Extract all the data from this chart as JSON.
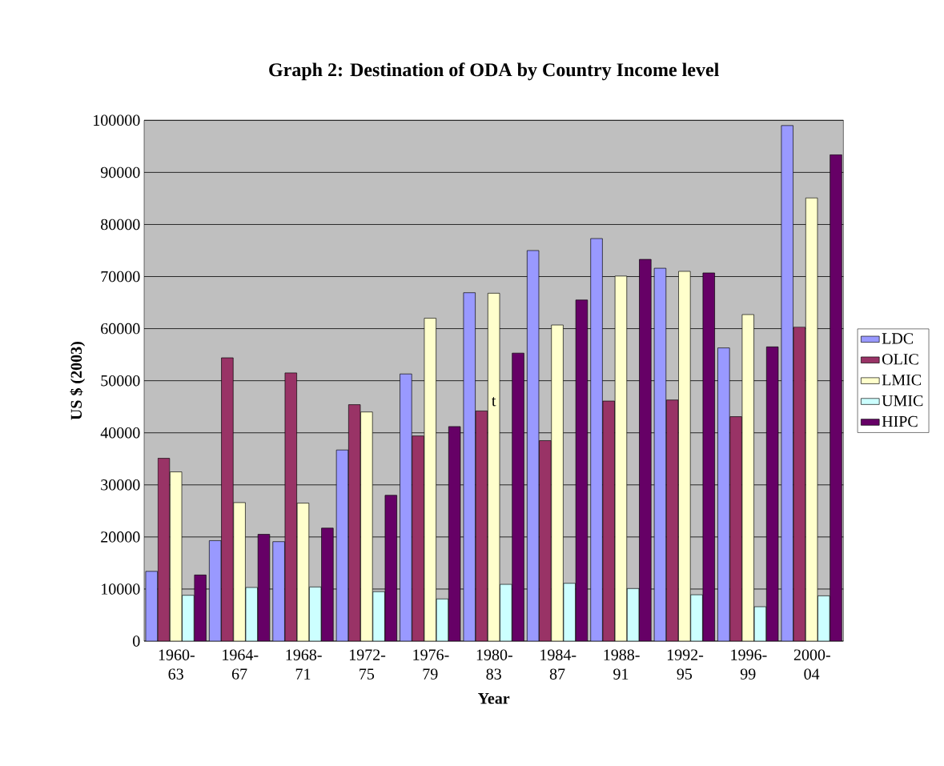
{
  "chart_data": {
    "type": "bar",
    "title": "Graph 2: Destination of ODA by Country Income level",
    "xlabel": "Year",
    "ylabel": "US $ (2003)",
    "categories": [
      "1960-63",
      "1964-67",
      "1968-71",
      "1972-75",
      "1976-79",
      "1980-83",
      "1984-87",
      "1988-91",
      "1992-95",
      "1996-99",
      "2000-04"
    ],
    "series": [
      {
        "name": "LDC",
        "color": "#9999ff",
        "values": [
          13400,
          19300,
          19100,
          36700,
          51300,
          66900,
          75000,
          77300,
          71600,
          56300,
          99000
        ]
      },
      {
        "name": "OLIC",
        "color": "#993366",
        "values": [
          35100,
          54400,
          51500,
          45400,
          39400,
          44200,
          38500,
          46100,
          46300,
          43100,
          60300
        ]
      },
      {
        "name": "LMIC",
        "color": "#ffffcc",
        "values": [
          32500,
          26600,
          26500,
          44000,
          62000,
          66800,
          60700,
          70100,
          71000,
          62700,
          85100
        ]
      },
      {
        "name": "UMIC",
        "color": "#ccffff",
        "values": [
          8800,
          10300,
          10400,
          9500,
          8100,
          10900,
          11100,
          10100,
          8900,
          6600,
          8700
        ]
      },
      {
        "name": "HIPC",
        "color": "#660066",
        "values": [
          12700,
          20500,
          21700,
          28000,
          41200,
          55300,
          65500,
          73300,
          70700,
          56500,
          93400
        ]
      }
    ],
    "annotations": [
      "t"
    ],
    "ylim": [
      0,
      100000
    ],
    "yticks": [
      0,
      10000,
      20000,
      30000,
      40000,
      50000,
      60000,
      70000,
      80000,
      90000,
      100000
    ],
    "grid": "y",
    "legend": "right"
  }
}
